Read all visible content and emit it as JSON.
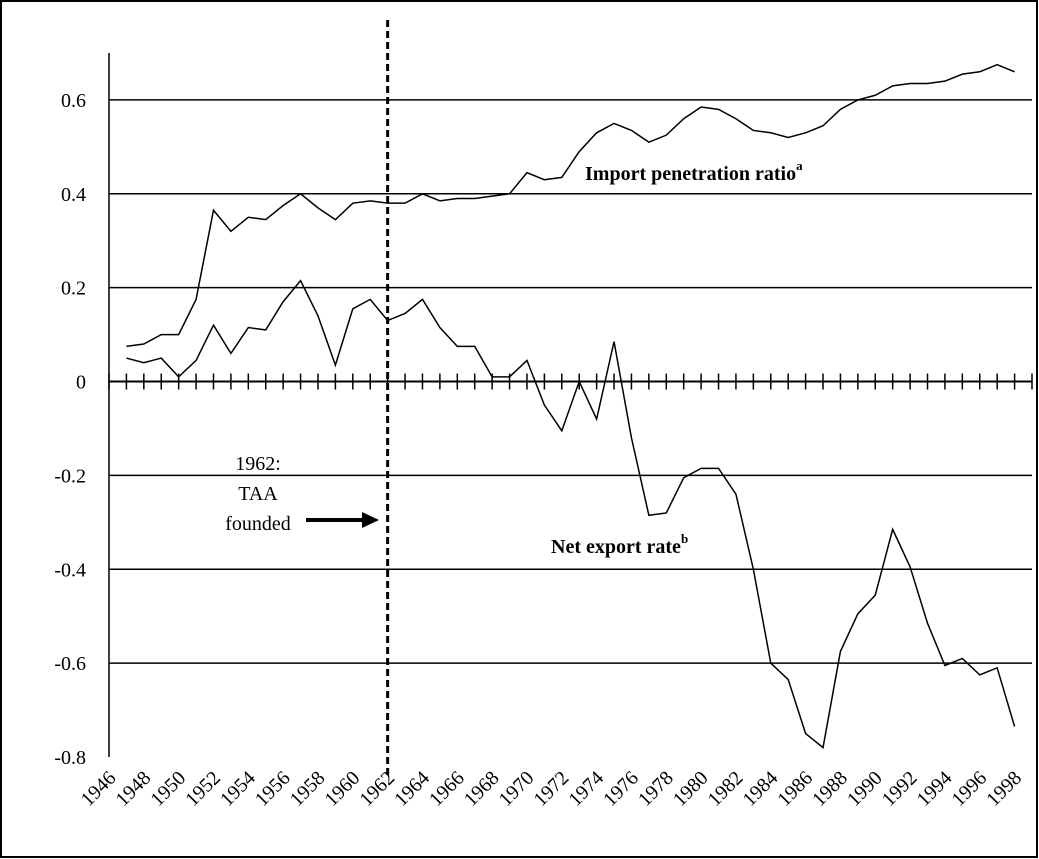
{
  "chart_data": {
    "type": "line",
    "x": [
      1947,
      1948,
      1949,
      1950,
      1951,
      1952,
      1953,
      1954,
      1955,
      1956,
      1957,
      1958,
      1959,
      1960,
      1961,
      1962,
      1963,
      1964,
      1965,
      1966,
      1967,
      1968,
      1969,
      1970,
      1971,
      1972,
      1973,
      1974,
      1975,
      1976,
      1977,
      1978,
      1979,
      1980,
      1981,
      1982,
      1983,
      1984,
      1985,
      1986,
      1987,
      1988,
      1989,
      1990,
      1991,
      1992,
      1993,
      1994,
      1995,
      1996,
      1997,
      1998
    ],
    "series": [
      {
        "name": "Import penetration ratio",
        "superscript": "a",
        "color": "#000000",
        "values": [
          0.075,
          0.08,
          0.1,
          0.1,
          0.175,
          0.365,
          0.32,
          0.35,
          0.345,
          0.375,
          0.4,
          0.37,
          0.345,
          0.38,
          0.385,
          0.38,
          0.38,
          0.4,
          0.385,
          0.39,
          0.39,
          0.395,
          0.4,
          0.445,
          0.43,
          0.435,
          0.49,
          0.53,
          0.55,
          0.535,
          0.51,
          0.525,
          0.56,
          0.585,
          0.58,
          0.56,
          0.535,
          0.53,
          0.52,
          0.53,
          0.545,
          0.58,
          0.6,
          0.61,
          0.63,
          0.635,
          0.635,
          0.64,
          0.655,
          0.66,
          0.675,
          0.66
        ]
      },
      {
        "name": "Net export rate",
        "superscript": "b",
        "color": "#000000",
        "values": [
          0.05,
          0.04,
          0.05,
          0.01,
          0.045,
          0.12,
          0.06,
          0.115,
          0.11,
          0.17,
          0.215,
          0.14,
          0.035,
          0.155,
          0.175,
          0.13,
          0.145,
          0.175,
          0.115,
          0.075,
          0.075,
          0.01,
          0.01,
          0.045,
          -0.05,
          -0.105,
          0.0,
          -0.08,
          0.085,
          -0.12,
          -0.285,
          -0.28,
          -0.205,
          -0.185,
          -0.185,
          -0.24,
          -0.4,
          -0.6,
          -0.635,
          -0.75,
          -0.78,
          -0.575,
          -0.495,
          -0.455,
          -0.315,
          -0.395,
          -0.515,
          -0.605,
          -0.59,
          -0.625,
          -0.61,
          -0.735
        ]
      }
    ],
    "xlim": [
      1946,
      1999
    ],
    "xticks": [
      1946,
      1948,
      1950,
      1952,
      1954,
      1956,
      1958,
      1960,
      1962,
      1964,
      1966,
      1968,
      1970,
      1972,
      1974,
      1976,
      1978,
      1980,
      1982,
      1984,
      1986,
      1988,
      1990,
      1992,
      1994,
      1996,
      1998
    ],
    "xminor_ticks": [
      1946,
      1947,
      1948,
      1949,
      1950,
      1951,
      1952,
      1953,
      1954,
      1955,
      1956,
      1957,
      1958,
      1959,
      1960,
      1961,
      1962,
      1963,
      1964,
      1965,
      1966,
      1967,
      1968,
      1969,
      1970,
      1971,
      1972,
      1973,
      1974,
      1975,
      1976,
      1977,
      1978,
      1979,
      1980,
      1981,
      1982,
      1983,
      1984,
      1985,
      1986,
      1987,
      1988,
      1989,
      1990,
      1991,
      1992,
      1993,
      1994,
      1995,
      1996,
      1997,
      1998,
      1999
    ],
    "ylim": [
      -0.8,
      0.7
    ],
    "yticks": [
      -0.8,
      -0.6,
      -0.4,
      -0.2,
      0,
      0.2,
      0.4,
      0.6
    ],
    "grid": true,
    "event": {
      "x": 1962,
      "label": [
        "1962:",
        "TAA",
        "founded"
      ]
    }
  }
}
